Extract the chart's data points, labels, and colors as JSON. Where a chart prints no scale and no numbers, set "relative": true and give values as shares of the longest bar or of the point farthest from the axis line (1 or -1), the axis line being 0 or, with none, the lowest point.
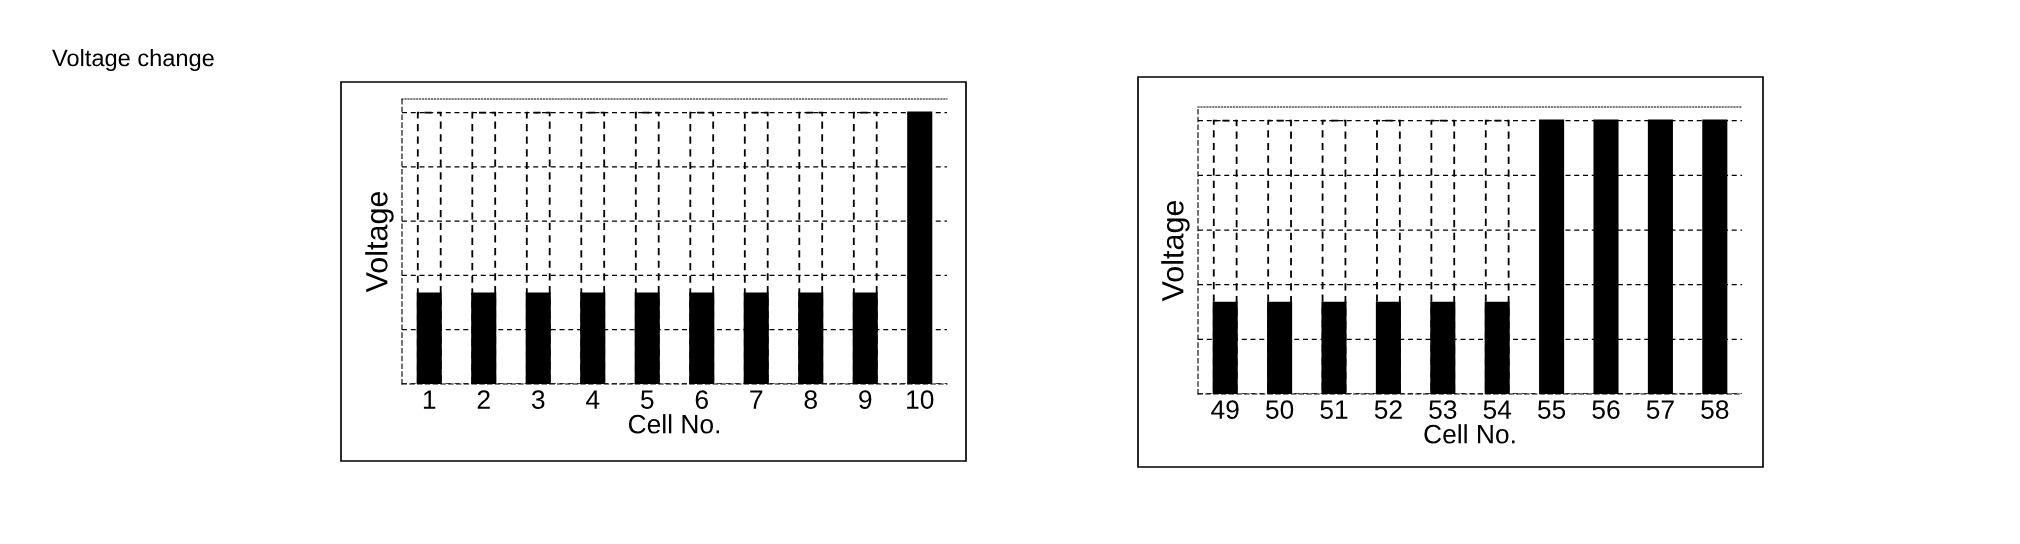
{
  "chart_data": [
    {
      "type": "bar",
      "annotations": [
        "Voltage change"
      ],
      "xlabel": "Cell No.",
      "ylabel": "Voltage",
      "relative": true,
      "grid": "y",
      "categories": [
        "1",
        "2",
        "3",
        "4",
        "5",
        "6",
        "7",
        "8",
        "9",
        "10"
      ],
      "series": [
        {
          "color": "#000000",
          "line_style": "dashed",
          "values": [
            1,
            1,
            1,
            1,
            1,
            1,
            1,
            1,
            1,
            null
          ]
        },
        {
          "color": "#000000",
          "values": [
            0.333,
            0.333,
            0.333,
            0.333,
            0.333,
            0.333,
            0.333,
            0.333,
            0.333,
            1
          ]
        }
      ]
    },
    {
      "type": "bar",
      "xlabel": "Cell No.",
      "ylabel": "Voltage",
      "relative": true,
      "grid": "y",
      "categories": [
        "49",
        "50",
        "51",
        "52",
        "53",
        "54",
        "55",
        "56",
        "57",
        "58"
      ],
      "series": [
        {
          "color": "#000000",
          "line_style": "dashed",
          "values": [
            1,
            1,
            1,
            1,
            1,
            1,
            null,
            null,
            null,
            null
          ]
        },
        {
          "color": "#000000",
          "values": [
            0.333,
            0.333,
            0.333,
            0.333,
            0.333,
            0.333,
            1,
            1,
            1,
            1
          ]
        }
      ]
    }
  ]
}
